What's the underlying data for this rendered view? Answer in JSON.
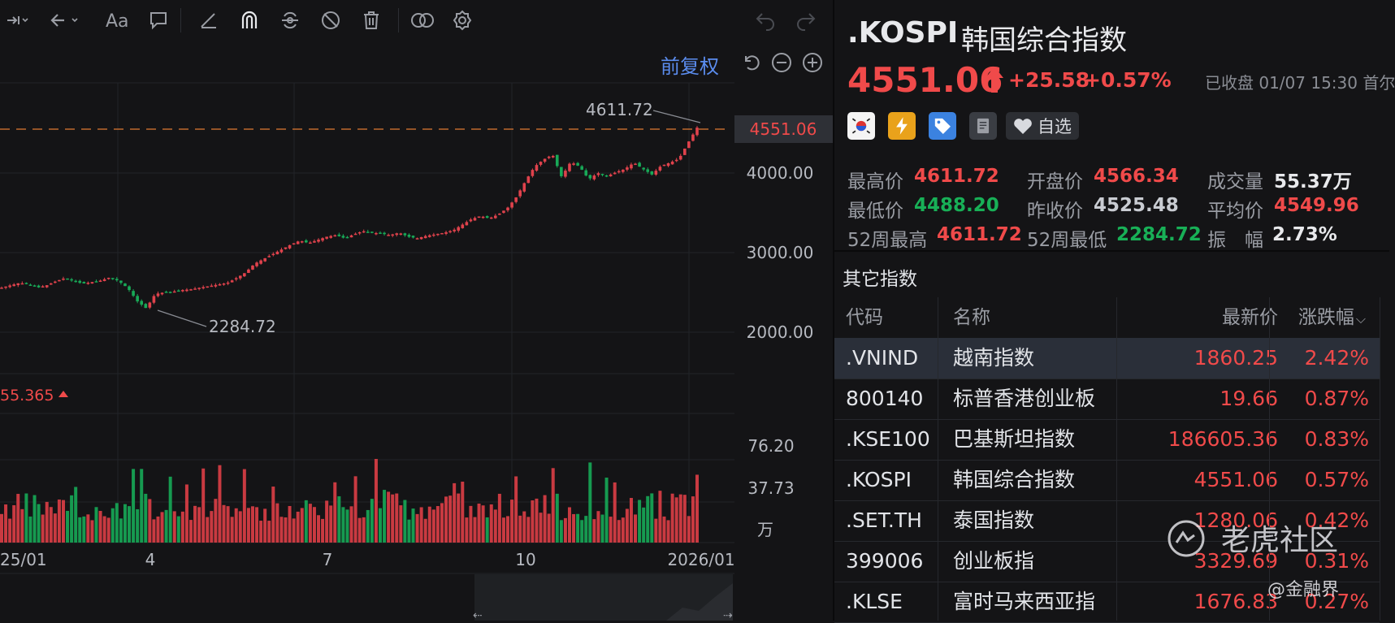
{
  "chart": {
    "adjust_label": "前复权",
    "last_price_label": "4551.06",
    "price_axis": [
      "4000.00",
      "3000.00",
      "2000.00"
    ],
    "high_label": "4611.72",
    "low_label": "2284.72",
    "volume_indicator": "55.365",
    "volume_axis": [
      "76.20",
      "37.73"
    ],
    "volume_unit": "万",
    "time_axis": [
      "25/01",
      "4",
      "7",
      "10",
      "2026/01"
    ]
  },
  "chart_data": {
    "type": "candlestick",
    "symbol": ".KOSPI",
    "x_range": [
      "2025-01",
      "2026-01"
    ],
    "y_ticks": [
      2000,
      3000,
      4000
    ],
    "reference_price": 4551.06,
    "annotations": [
      {
        "label": "4611.72",
        "kind": "high"
      },
      {
        "label": "2284.72",
        "kind": "low"
      }
    ],
    "price_path": [
      2560,
      2590,
      2620,
      2600,
      2560,
      2590,
      2640,
      2680,
      2640,
      2610,
      2630,
      2650,
      2690,
      2640,
      2550,
      2390,
      2300,
      2480,
      2500,
      2510,
      2530,
      2540,
      2560,
      2580,
      2600,
      2620,
      2680,
      2750,
      2860,
      2920,
      2980,
      3040,
      3100,
      3150,
      3120,
      3160,
      3200,
      3220,
      3180,
      3230,
      3270,
      3250,
      3240,
      3220,
      3250,
      3200,
      3180,
      3210,
      3230,
      3250,
      3280,
      3350,
      3420,
      3460,
      3430,
      3480,
      3560,
      3700,
      3900,
      4080,
      4170,
      4230,
      3950,
      4140,
      4080,
      3920,
      4000,
      3960,
      4010,
      4050,
      4130,
      4050,
      3980,
      4090,
      4130,
      4180,
      4380,
      4570
    ],
    "volume_axis_ticks": [
      37.73,
      76.2
    ],
    "volume_unit": "万"
  },
  "quote": {
    "symbol": ".KOSPI",
    "name": "韩国综合指数",
    "price": "4551.06",
    "change": "+25.58",
    "change_pct": "+0.57%",
    "status": "已收盘 01/07 15:30 首尔",
    "watch_label": "自选",
    "colors": {
      "up": "#f04a4a",
      "down": "#18b057"
    }
  },
  "stats": {
    "high": {
      "label": "最高价",
      "value": "4611.72"
    },
    "open": {
      "label": "开盘价",
      "value": "4566.34"
    },
    "volume": {
      "label": "成交量",
      "value": "55.37万"
    },
    "low": {
      "label": "最低价",
      "value": "4488.20"
    },
    "prev_close": {
      "label": "昨收价",
      "value": "4525.48"
    },
    "avg": {
      "label": "平均价",
      "value": "4549.96"
    },
    "w52_high": {
      "label": "52周最高",
      "value": "4611.72"
    },
    "w52_low": {
      "label": "52周最低",
      "value": "2284.72"
    },
    "amplitude": {
      "label": "振　幅",
      "value": "2.73%"
    }
  },
  "others": {
    "title": "其它指数",
    "headers": {
      "code": "代码",
      "name": "名称",
      "price": "最新价",
      "pct": "涨跌幅"
    },
    "rows": [
      {
        "code": ".VNIND",
        "name": "越南指数",
        "price": "1860.25",
        "pct": "2.42%"
      },
      {
        "code": "800140",
        "name": "标普香港创业板",
        "price": "19.66",
        "pct": "0.87%"
      },
      {
        "code": ".KSE100",
        "name": "巴基斯坦指数",
        "price": "186605.36",
        "pct": "0.83%"
      },
      {
        "code": ".KOSPI",
        "name": "韩国综合指数",
        "price": "4551.06",
        "pct": "0.57%"
      },
      {
        "code": ".SET.TH",
        "name": "泰国指数",
        "price": "1280.06",
        "pct": "0.42%"
      },
      {
        "code": "399006",
        "name": "创业板指",
        "price": "3329.69",
        "pct": "0.31%"
      },
      {
        "code": ".KLSE",
        "name": "富时马来西亚指",
        "price": "1676.83",
        "pct": "0.27%"
      }
    ]
  },
  "watermark": {
    "brand": "老虎社区",
    "sub": "@金融界"
  },
  "icons": [
    "crosshair-icon",
    "back-arrow-icon",
    "text-icon",
    "comment-icon",
    "line-draw-icon",
    "magnet-icon",
    "sync-icon",
    "hide-icon",
    "trash-icon",
    "compare-icon",
    "settings-icon",
    "undo-icon",
    "redo-icon",
    "reset-icon",
    "zoom-out-icon",
    "zoom-in-icon",
    "korea-flag-icon",
    "flash-icon",
    "tag-icon",
    "document-icon",
    "heart-icon"
  ]
}
